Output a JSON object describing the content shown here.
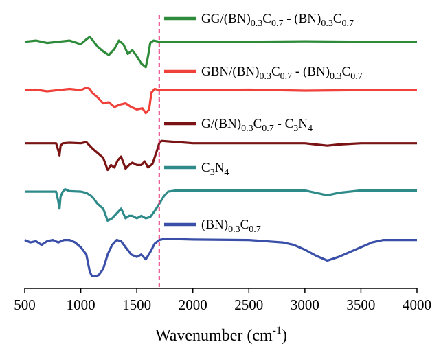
{
  "chart_data": {
    "type": "line",
    "title": "",
    "xlabel": "Wavenumber (cm",
    "xlabel_sup": "-1",
    "xlabel_end": ")",
    "ylabel": "",
    "xlim": [
      500,
      4000
    ],
    "x_ticks": [
      "500",
      "1000",
      "1500",
      "2000",
      "2500",
      "3000",
      "3500",
      "4000"
    ],
    "reference_line": {
      "x": 1700,
      "style": "dashed",
      "color": "#e8357a"
    },
    "legend_placement": "inline-right-of-reference",
    "series": [
      {
        "id": "gg",
        "color": "#2e8b3a",
        "label_parts": [
          [
            "GG/(BN)",
            ""
          ],
          [
            "0.3",
            "sub"
          ],
          [
            "C",
            ""
          ],
          [
            "0.7",
            "sub"
          ],
          [
            " - (BN)",
            ""
          ],
          [
            "0.3",
            "sub"
          ],
          [
            "C",
            ""
          ],
          [
            "0.7",
            "sub"
          ]
        ],
        "offset": 8.2,
        "points": [
          [
            500,
            0
          ],
          [
            600,
            0.05
          ],
          [
            700,
            -0.05
          ],
          [
            800,
            0
          ],
          [
            900,
            0.05
          ],
          [
            1000,
            -0.1
          ],
          [
            1050,
            0.1
          ],
          [
            1080,
            0.2
          ],
          [
            1100,
            0.1
          ],
          [
            1150,
            -0.2
          ],
          [
            1200,
            -0.4
          ],
          [
            1250,
            -0.55
          ],
          [
            1300,
            -0.3
          ],
          [
            1340,
            0.05
          ],
          [
            1380,
            -0.1
          ],
          [
            1420,
            -0.5
          ],
          [
            1460,
            -0.35
          ],
          [
            1500,
            -0.6
          ],
          [
            1540,
            -0.9
          ],
          [
            1580,
            -1.05
          ],
          [
            1600,
            -0.6
          ],
          [
            1620,
            -0.05
          ],
          [
            1650,
            0.05
          ],
          [
            1700,
            0
          ],
          [
            2000,
            0
          ],
          [
            2500,
            0
          ],
          [
            3000,
            0.02
          ],
          [
            3500,
            0
          ],
          [
            4000,
            0
          ]
        ]
      },
      {
        "id": "gbn",
        "color": "#f0403a",
        "label_parts": [
          [
            "GBN/(BN)",
            ""
          ],
          [
            "0.3",
            "sub"
          ],
          [
            "C",
            ""
          ],
          [
            "0.7",
            "sub"
          ],
          [
            " - (BN)",
            ""
          ],
          [
            "0.3",
            "sub"
          ],
          [
            "C",
            ""
          ],
          [
            "0.7",
            "sub"
          ]
        ],
        "offset": 6.2,
        "points": [
          [
            500,
            0
          ],
          [
            600,
            0.02
          ],
          [
            700,
            -0.05
          ],
          [
            800,
            0
          ],
          [
            900,
            0.05
          ],
          [
            1000,
            0
          ],
          [
            1050,
            0.1
          ],
          [
            1080,
            0.05
          ],
          [
            1100,
            -0.1
          ],
          [
            1150,
            -0.3
          ],
          [
            1200,
            -0.55
          ],
          [
            1250,
            -0.5
          ],
          [
            1300,
            -0.7
          ],
          [
            1350,
            -0.6
          ],
          [
            1400,
            -0.55
          ],
          [
            1450,
            -0.7
          ],
          [
            1500,
            -0.8
          ],
          [
            1550,
            -0.75
          ],
          [
            1580,
            -0.95
          ],
          [
            1610,
            -0.8
          ],
          [
            1630,
            -0.1
          ],
          [
            1660,
            0.05
          ],
          [
            1700,
            0
          ],
          [
            2000,
            0
          ],
          [
            2500,
            0.02
          ],
          [
            3000,
            -0.02
          ],
          [
            3500,
            0
          ],
          [
            4000,
            0
          ]
        ]
      },
      {
        "id": "g",
        "color": "#7a1414",
        "label_parts": [
          [
            "G/(BN)",
            ""
          ],
          [
            "0.3",
            "sub"
          ],
          [
            "C",
            ""
          ],
          [
            "0.7",
            "sub"
          ],
          [
            " - C",
            ""
          ],
          [
            "3",
            "sub"
          ],
          [
            "N",
            ""
          ],
          [
            "4",
            "sub"
          ]
        ],
        "offset": 4.0,
        "points": [
          [
            500,
            0
          ],
          [
            600,
            0
          ],
          [
            700,
            0
          ],
          [
            780,
            0
          ],
          [
            800,
            -0.3
          ],
          [
            810,
            -0.5
          ],
          [
            820,
            -0.1
          ],
          [
            840,
            0
          ],
          [
            900,
            0.02
          ],
          [
            1000,
            0
          ],
          [
            1050,
            0.05
          ],
          [
            1100,
            -0.2
          ],
          [
            1150,
            -0.4
          ],
          [
            1200,
            -0.6
          ],
          [
            1240,
            -1.1
          ],
          [
            1270,
            -0.9
          ],
          [
            1300,
            -1.0
          ],
          [
            1330,
            -0.7
          ],
          [
            1360,
            -0.55
          ],
          [
            1400,
            -1.05
          ],
          [
            1430,
            -0.9
          ],
          [
            1460,
            -0.8
          ],
          [
            1500,
            -0.9
          ],
          [
            1540,
            -0.9
          ],
          [
            1570,
            -0.75
          ],
          [
            1600,
            -1.0
          ],
          [
            1640,
            -0.85
          ],
          [
            1680,
            -0.3
          ],
          [
            1700,
            0
          ],
          [
            1720,
            0.1
          ],
          [
            2000,
            0
          ],
          [
            2500,
            0
          ],
          [
            3000,
            0
          ],
          [
            3100,
            -0.05
          ],
          [
            3200,
            -0.1
          ],
          [
            3300,
            -0.05
          ],
          [
            3500,
            0
          ],
          [
            4000,
            0
          ]
        ]
      },
      {
        "id": "c3n4",
        "color": "#2f8a8a",
        "label_parts": [
          [
            "C",
            ""
          ],
          [
            "3",
            "sub"
          ],
          [
            "N",
            ""
          ],
          [
            "4",
            "sub"
          ]
        ],
        "offset": 2.0,
        "points": [
          [
            500,
            0
          ],
          [
            600,
            0
          ],
          [
            700,
            0
          ],
          [
            780,
            0
          ],
          [
            800,
            -0.4
          ],
          [
            810,
            -0.7
          ],
          [
            820,
            -0.2
          ],
          [
            840,
            0
          ],
          [
            860,
            0.1
          ],
          [
            900,
            0.02
          ],
          [
            1000,
            0
          ],
          [
            1050,
            -0.05
          ],
          [
            1100,
            -0.2
          ],
          [
            1150,
            -0.5
          ],
          [
            1200,
            -0.7
          ],
          [
            1240,
            -1.2
          ],
          [
            1280,
            -1.1
          ],
          [
            1320,
            -0.9
          ],
          [
            1360,
            -0.7
          ],
          [
            1400,
            -1.1
          ],
          [
            1430,
            -1.0
          ],
          [
            1460,
            -1.0
          ],
          [
            1500,
            -1.1
          ],
          [
            1540,
            -1.0
          ],
          [
            1580,
            -1.1
          ],
          [
            1620,
            -1.05
          ],
          [
            1660,
            -0.8
          ],
          [
            1700,
            -0.5
          ],
          [
            1740,
            -0.2
          ],
          [
            1780,
            0
          ],
          [
            1850,
            0.05
          ],
          [
            2000,
            0.05
          ],
          [
            2500,
            0.05
          ],
          [
            3000,
            0.05
          ],
          [
            3100,
            -0.05
          ],
          [
            3200,
            -0.15
          ],
          [
            3300,
            -0.05
          ],
          [
            3500,
            0.05
          ],
          [
            4000,
            0.05
          ]
        ]
      },
      {
        "id": "bnc",
        "color": "#3a4fa8",
        "label_parts": [
          [
            "(BN)",
            ""
          ],
          [
            "0.3",
            "sub"
          ],
          [
            "C",
            ""
          ],
          [
            "0.7",
            "sub"
          ]
        ],
        "offset": 0.0,
        "points": [
          [
            500,
            0
          ],
          [
            550,
            -0.1
          ],
          [
            600,
            -0.05
          ],
          [
            650,
            -0.2
          ],
          [
            700,
            -0.05
          ],
          [
            750,
            0
          ],
          [
            800,
            -0.1
          ],
          [
            850,
            0
          ],
          [
            900,
            0
          ],
          [
            950,
            -0.1
          ],
          [
            1000,
            -0.3
          ],
          [
            1050,
            -0.6
          ],
          [
            1080,
            -1.3
          ],
          [
            1100,
            -1.5
          ],
          [
            1130,
            -1.5
          ],
          [
            1160,
            -1.45
          ],
          [
            1200,
            -1.2
          ],
          [
            1240,
            -0.6
          ],
          [
            1280,
            -0.2
          ],
          [
            1320,
            0
          ],
          [
            1360,
            -0.05
          ],
          [
            1400,
            -0.3
          ],
          [
            1450,
            -0.6
          ],
          [
            1500,
            -0.7
          ],
          [
            1540,
            -0.6
          ],
          [
            1580,
            -0.8
          ],
          [
            1620,
            -0.5
          ],
          [
            1660,
            -0.15
          ],
          [
            1700,
            0
          ],
          [
            1750,
            0.05
          ],
          [
            2000,
            0.02
          ],
          [
            2500,
            0
          ],
          [
            2800,
            -0.1
          ],
          [
            2900,
            -0.2
          ],
          [
            3000,
            -0.4
          ],
          [
            3100,
            -0.65
          ],
          [
            3200,
            -0.85
          ],
          [
            3300,
            -0.7
          ],
          [
            3400,
            -0.5
          ],
          [
            3500,
            -0.3
          ],
          [
            3600,
            -0.1
          ],
          [
            3700,
            0
          ],
          [
            4000,
            0
          ]
        ]
      }
    ]
  }
}
